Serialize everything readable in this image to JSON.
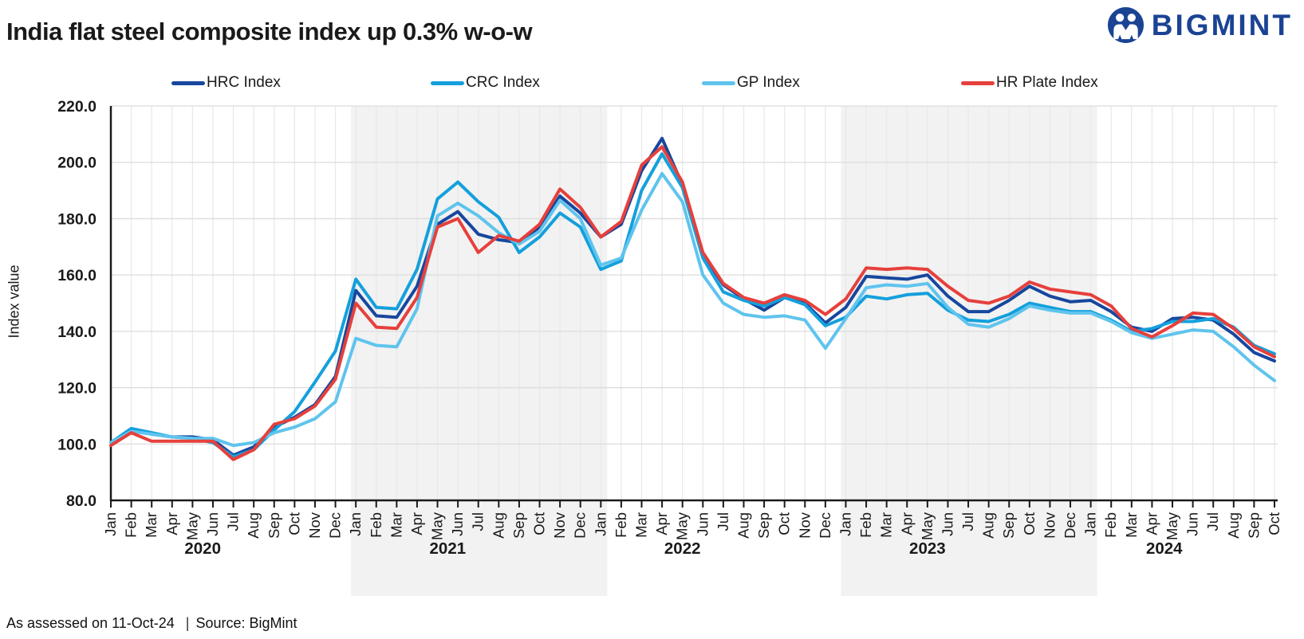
{
  "title": "India flat steel composite index up 0.3% w-o-w",
  "logo": {
    "text": "BIGMINT",
    "color": "#1B4394"
  },
  "footer": {
    "assessed": "As assessed on 11-Oct-24",
    "separator": "|",
    "source": "Source: BigMint"
  },
  "chart_data": {
    "type": "line",
    "title": "India flat steel composite index up 0.3% w-o-w",
    "ylabel": "Index value",
    "ylim": [
      80,
      220
    ],
    "grid": true,
    "legend_position": "top",
    "y_ticks": [
      {
        "v": 80,
        "label": "80.0"
      },
      {
        "v": 100,
        "label": "100.0"
      },
      {
        "v": 120,
        "label": "120.0"
      },
      {
        "v": 140,
        "label": "140.0"
      },
      {
        "v": 160,
        "label": "160.0"
      },
      {
        "v": 180,
        "label": "180.0"
      },
      {
        "v": 200,
        "label": "200.0"
      },
      {
        "v": 220,
        "label": "220.0"
      }
    ],
    "x_labels": [
      "Jan",
      "Feb",
      "Mar",
      "Apr",
      "May",
      "Jun",
      "Jul",
      "Aug",
      "Sep",
      "Oct",
      "Nov",
      "Dec",
      "Jan",
      "Feb",
      "Mar",
      "Apr",
      "May",
      "Jun",
      "Jul",
      "Aug",
      "Sep",
      "Oct",
      "Nov",
      "Dec",
      "Jan",
      "Feb",
      "Mar",
      "Apr",
      "May",
      "Jun",
      "Jul",
      "Aug",
      "Sep",
      "Oct",
      "Nov",
      "Dec",
      "Jan",
      "Feb",
      "Mar",
      "Apr",
      "May",
      "Jun",
      "Jul",
      "Aug",
      "Sep",
      "Oct",
      "Nov",
      "Dec",
      "Jan",
      "Feb",
      "Mar",
      "Apr",
      "May",
      "Jun",
      "Jul",
      "Aug",
      "Sep",
      "Oct"
    ],
    "year_labels": [
      {
        "label": "2020",
        "center_index": 4.5
      },
      {
        "label": "2021",
        "center_index": 16.5
      },
      {
        "label": "2022",
        "center_index": 28.0
      },
      {
        "label": "2023",
        "center_index": 40.0
      },
      {
        "label": "2024",
        "center_index": 51.6
      }
    ],
    "bands": [
      {
        "year": "2021",
        "start_index": 12,
        "end_index": 24
      },
      {
        "year": "2023",
        "start_index": 36,
        "end_index": 48
      }
    ],
    "band_color": "#f2f2f2",
    "grid_color_v": "#e9e9e9",
    "grid_color_h": "#dcdcdc",
    "axis_color": "#1a1a1a",
    "series": [
      {
        "name": "HRC Index",
        "slug": "hrc-index",
        "color": "#17479E",
        "values": [
          100.5,
          105,
          103.5,
          102.5,
          102.5,
          101.5,
          96,
          99,
          106,
          109.5,
          114,
          124,
          154.5,
          145.5,
          145,
          156,
          178,
          182.5,
          174.5,
          172.5,
          171.5,
          177,
          188,
          182,
          173.5,
          178,
          197,
          208.5,
          192,
          167.5,
          156.5,
          151.5,
          147.5,
          152,
          150,
          143,
          148.5,
          159.5,
          159,
          158.5,
          160,
          152.5,
          147,
          147,
          151,
          156,
          152.5,
          150.5,
          151,
          147,
          141.5,
          140,
          144.5,
          145,
          144,
          139,
          132.5,
          129.5
        ]
      },
      {
        "name": "CRC Index",
        "slug": "crc-index",
        "color": "#14A0DC",
        "values": [
          100.5,
          105.5,
          104,
          102.5,
          102,
          100.5,
          95.5,
          98,
          105,
          111.5,
          122,
          133,
          158.5,
          148.5,
          148,
          162,
          187,
          193,
          186,
          180.5,
          168,
          173.5,
          182,
          177,
          162,
          165,
          190,
          203,
          191,
          166,
          154,
          151,
          149,
          152,
          149.5,
          142,
          145,
          152.5,
          151.5,
          153,
          153.5,
          147.5,
          144,
          143.5,
          146,
          150,
          148.5,
          147,
          147,
          144,
          140,
          141,
          143.5,
          143.5,
          144.5,
          141.5,
          135,
          132
        ]
      },
      {
        "name": "GP Index",
        "slug": "gp-index",
        "color": "#5FC4ED",
        "values": [
          100.5,
          104.5,
          103.5,
          102.5,
          102,
          102,
          99.5,
          100.5,
          104,
          106,
          109,
          115,
          137.5,
          135,
          134.5,
          148,
          181,
          185.5,
          181,
          175,
          171,
          175.5,
          186.5,
          180,
          163.5,
          166,
          183,
          196,
          186,
          160,
          150,
          146,
          145,
          145.5,
          144,
          134,
          144.5,
          155.5,
          156.5,
          156,
          157,
          148.5,
          142.5,
          141.5,
          144.5,
          149,
          147.5,
          146.5,
          146.5,
          143.5,
          139.5,
          137.5,
          139,
          140.5,
          140,
          134.5,
          128,
          122.5
        ]
      },
      {
        "name": "HR Plate Index",
        "slug": "hr-plate-index",
        "color": "#E6403C",
        "values": [
          99.5,
          104,
          101,
          101,
          101,
          101,
          94.5,
          98,
          107,
          109,
          113.5,
          123,
          150,
          141.5,
          141,
          152,
          177,
          180,
          168,
          174,
          172,
          178,
          190.5,
          184,
          173.5,
          179,
          199,
          205.5,
          193,
          168,
          157,
          152,
          150,
          153,
          151,
          146,
          151.5,
          162.5,
          162,
          162.5,
          162,
          156,
          151,
          150,
          152.5,
          157.5,
          155,
          154,
          153,
          149,
          141,
          138,
          142,
          146.5,
          146,
          141,
          134.5,
          131
        ]
      }
    ]
  }
}
